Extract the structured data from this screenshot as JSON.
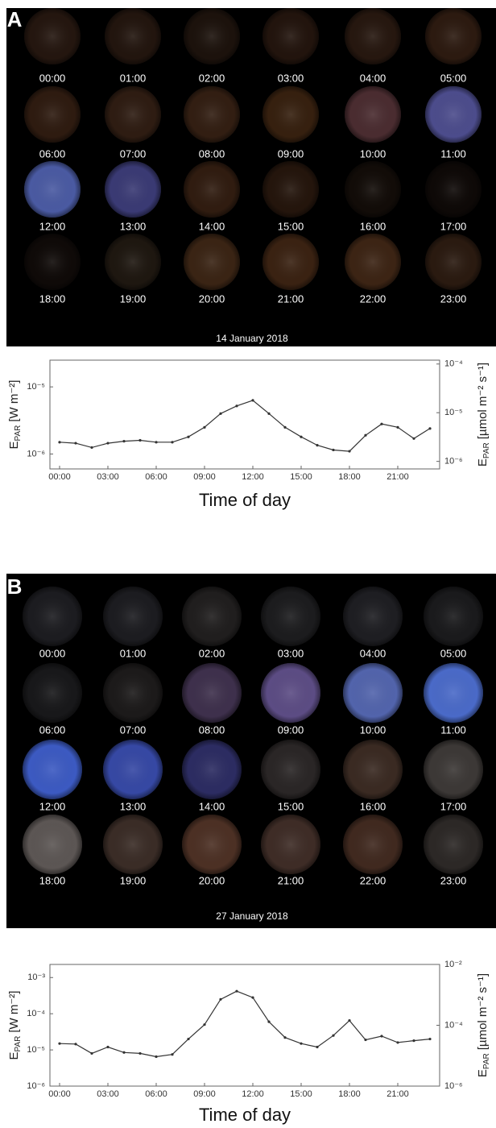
{
  "panels": [
    {
      "label": "A",
      "date": "14 January 2018",
      "times": [
        "00:00",
        "01:00",
        "02:00",
        "03:00",
        "04:00",
        "05:00",
        "06:00",
        "07:00",
        "08:00",
        "09:00",
        "10:00",
        "11:00",
        "12:00",
        "13:00",
        "14:00",
        "15:00",
        "16:00",
        "17:00",
        "18:00",
        "19:00",
        "20:00",
        "21:00",
        "22:00",
        "23:00"
      ]
    },
    {
      "label": "B",
      "date": "27 January 2018",
      "times": [
        "00:00",
        "01:00",
        "02:00",
        "03:00",
        "04:00",
        "05:00",
        "06:00",
        "07:00",
        "08:00",
        "09:00",
        "10:00",
        "11:00",
        "12:00",
        "13:00",
        "14:00",
        "15:00",
        "16:00",
        "17:00",
        "18:00",
        "19:00",
        "20:00",
        "21:00",
        "22:00",
        "23:00"
      ]
    }
  ],
  "chart_data": [
    {
      "type": "line",
      "log_scale": true,
      "xlabel": "Time of day",
      "ylabel": {
        "main": "E",
        "sub": "PAR",
        "unit": "[W m⁻²]"
      },
      "y2label": {
        "main": "E",
        "sub": "PAR",
        "unit": "[µmol m⁻² s⁻¹]"
      },
      "x": [
        0,
        1,
        2,
        3,
        4,
        5,
        6,
        7,
        8,
        9,
        10,
        11,
        12,
        13,
        14,
        15,
        16,
        17,
        18,
        19,
        20,
        21,
        22,
        23
      ],
      "series": [
        {
          "color": "#333333",
          "values": [
            1.5e-06,
            1.45e-06,
            1.25e-06,
            1.45e-06,
            1.55e-06,
            1.6e-06,
            1.5e-06,
            1.5e-06,
            1.8e-06,
            2.5e-06,
            4e-06,
            5.2e-06,
            6.3e-06,
            4e-06,
            2.5e-06,
            1.8e-06,
            1.35e-06,
            1.15e-06,
            1.1e-06,
            1.9e-06,
            2.8e-06,
            2.5e-06,
            1.7e-06,
            2.4e-06
          ]
        }
      ],
      "xlim": [
        -0.6,
        23.6
      ],
      "xticks": [
        {
          "value": 0,
          "label": "00:00"
        },
        {
          "value": 3,
          "label": "03:00"
        },
        {
          "value": 6,
          "label": "06:00"
        },
        {
          "value": 9,
          "label": "09:00"
        },
        {
          "value": 12,
          "label": "12:00"
        },
        {
          "value": 15,
          "label": "15:00"
        },
        {
          "value": 18,
          "label": "18:00"
        },
        {
          "value": 21,
          "label": "21:00"
        }
      ],
      "ylim": [
        6e-07,
        2.5e-05
      ],
      "yticks": [
        {
          "value": 1e-06,
          "label": "10⁻⁶"
        },
        {
          "value": 1e-05,
          "label": "10⁻⁵"
        }
      ],
      "y2lim": [
        7e-07,
        0.00012
      ],
      "y2ticks": [
        {
          "value": 1e-06,
          "label": "10⁻⁶"
        },
        {
          "value": 1e-05,
          "label": "10⁻⁵"
        },
        {
          "value": 0.0001,
          "label": "10⁻⁴"
        }
      ]
    },
    {
      "type": "line",
      "log_scale": true,
      "xlabel": "Time of day",
      "ylabel": {
        "main": "E",
        "sub": "PAR",
        "unit": "[W m⁻²]"
      },
      "y2label": {
        "main": "E",
        "sub": "PAR",
        "unit": "[µmol m⁻² s⁻¹]"
      },
      "x": [
        0,
        1,
        2,
        3,
        4,
        5,
        6,
        7,
        8,
        9,
        10,
        11,
        12,
        13,
        14,
        15,
        16,
        17,
        18,
        19,
        20,
        21,
        22,
        23
      ],
      "series": [
        {
          "color": "#333333",
          "values": [
            1.5e-05,
            1.45e-05,
            8e-06,
            1.2e-05,
            8.5e-06,
            8e-06,
            6.5e-06,
            7.5e-06,
            2e-05,
            5e-05,
            0.00025,
            0.00042,
            0.00028,
            6e-05,
            2.2e-05,
            1.5e-05,
            1.2e-05,
            2.5e-05,
            6.5e-05,
            1.9e-05,
            2.4e-05,
            1.6e-05,
            1.8e-05,
            2e-05
          ]
        }
      ],
      "xlim": [
        -0.6,
        23.6
      ],
      "xticks": [
        {
          "value": 0,
          "label": "00:00"
        },
        {
          "value": 3,
          "label": "03:00"
        },
        {
          "value": 6,
          "label": "06:00"
        },
        {
          "value": 9,
          "label": "09:00"
        },
        {
          "value": 12,
          "label": "12:00"
        },
        {
          "value": 15,
          "label": "15:00"
        },
        {
          "value": 18,
          "label": "18:00"
        },
        {
          "value": 21,
          "label": "21:00"
        }
      ],
      "ylim": [
        1e-06,
        0.0023
      ],
      "yticks": [
        {
          "value": 1e-06,
          "label": "10⁻⁶"
        },
        {
          "value": 1e-05,
          "label": "10⁻⁵"
        },
        {
          "value": 0.0001,
          "label": "10⁻⁴"
        },
        {
          "value": 0.001,
          "label": "10⁻³"
        }
      ],
      "y2lim": [
        1e-06,
        0.01
      ],
      "y2ticks": [
        {
          "value": 1e-06,
          "label": "10⁻⁶"
        },
        {
          "value": 0.0001,
          "label": "10⁻⁴"
        },
        {
          "value": 0.01,
          "label": "10⁻²"
        }
      ]
    }
  ]
}
